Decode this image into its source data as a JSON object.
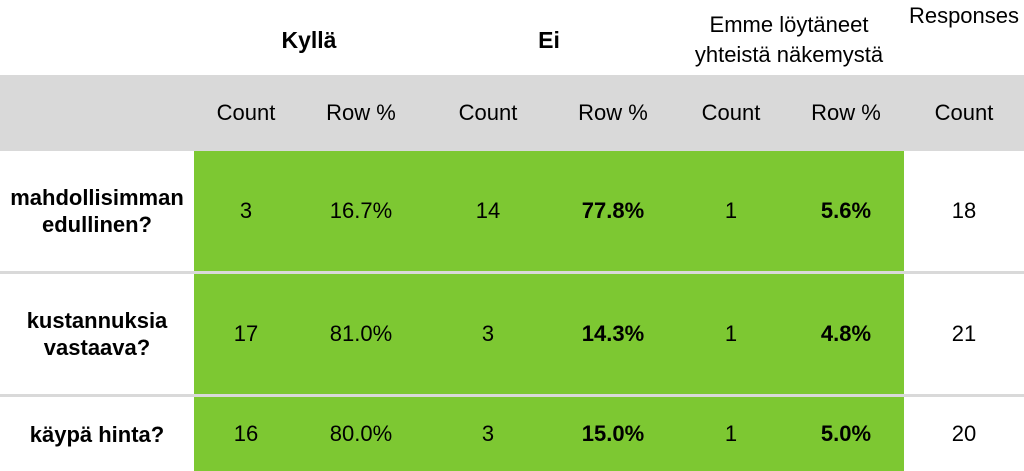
{
  "header": {
    "group_kylla": "Kyllä",
    "group_ei": "Ei",
    "group_emme_line1": "Emme löytäneet",
    "group_emme_line2": "yhteistä näkemystä",
    "group_responses": "Responses"
  },
  "subheader": {
    "count": "Count",
    "row_pct": "Row %"
  },
  "colors": {
    "green": "#7dc832",
    "band": "#d9d9d9"
  },
  "chart_data": {
    "type": "table",
    "groups": [
      "Kyllä",
      "Ei",
      "Emme löytäneet yhteistä näkemystä",
      "Responses"
    ],
    "columns": [
      "Count",
      "Row %",
      "Count",
      "Row %",
      "Count",
      "Row %",
      "Count"
    ],
    "rows": [
      {
        "label_line1": "mahdollisimman",
        "label_line2": "edullinen?",
        "values": [
          "3",
          "16.7%",
          "14",
          "77.8%",
          "1",
          "5.6%",
          "18"
        ]
      },
      {
        "label_line1": "kustannuksia",
        "label_line2": "vastaava?",
        "values": [
          "17",
          "81.0%",
          "3",
          "14.3%",
          "1",
          "4.8%",
          "21"
        ]
      },
      {
        "label_line1": "käypä hinta?",
        "label_line2": "",
        "values": [
          "16",
          "80.0%",
          "3",
          "15.0%",
          "1",
          "5.0%",
          "20"
        ]
      }
    ]
  }
}
